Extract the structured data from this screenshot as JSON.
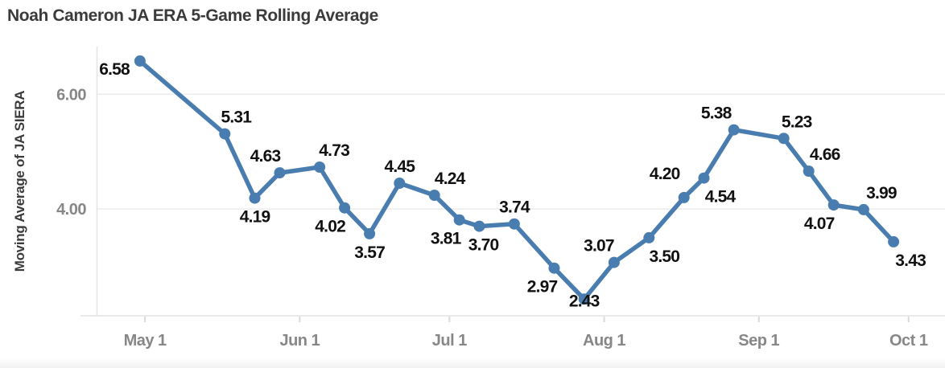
{
  "chart_data": {
    "type": "line",
    "title": "Noah Cameron JA ERA 5-Game Rolling Average",
    "ylabel": "Moving Average of JA SIERA",
    "xlabel": "",
    "legend": false,
    "grid": true,
    "line_color": "#4a7daf",
    "marker_color": "#4a7daf",
    "data_label_color": "#111111",
    "axis_text_color": "#878787",
    "axis_title_color": "#3b3b3b",
    "grid_color": "#ececec",
    "axis_line_color": "#e3e3e3",
    "tick_color": "#d9d9d9",
    "x_unit": "days_since_May_1",
    "xlim_days": [
      -9.7,
      160.3
    ],
    "ylim": [
      2.14,
      6.83
    ],
    "y_ticks": [
      {
        "value": 6.0,
        "label": "6.00"
      },
      {
        "value": 4.0,
        "label": "4.00"
      }
    ],
    "x_ticks": [
      {
        "day": 0,
        "label": "May 1"
      },
      {
        "day": 31,
        "label": "Jun 1"
      },
      {
        "day": 61,
        "label": "Jul 1"
      },
      {
        "day": 92,
        "label": "Aug 1"
      },
      {
        "day": 123,
        "label": "Sep 1"
      },
      {
        "day": 153,
        "label": "Oct 1"
      }
    ],
    "points": [
      {
        "day": -1,
        "value": 6.58,
        "label": "6.58",
        "label_pos": "left"
      },
      {
        "day": 16,
        "value": 5.31,
        "label": "5.31",
        "label_pos": "above",
        "dx": 14
      },
      {
        "day": 22,
        "value": 4.19,
        "label": "4.19",
        "label_pos": "below"
      },
      {
        "day": 27,
        "value": 4.63,
        "label": "4.63",
        "label_pos": "above",
        "dx": -18
      },
      {
        "day": 35,
        "value": 4.73,
        "label": "4.73",
        "label_pos": "above",
        "dx": 18
      },
      {
        "day": 40,
        "value": 4.02,
        "label": "4.02",
        "label_pos": "below",
        "dx": -18
      },
      {
        "day": 45,
        "value": 3.57,
        "label": "3.57",
        "label_pos": "below"
      },
      {
        "day": 51,
        "value": 4.45,
        "label": "4.45",
        "label_pos": "above"
      },
      {
        "day": 58,
        "value": 4.24,
        "label": "4.24",
        "label_pos": "above",
        "dx": 19
      },
      {
        "day": 63,
        "value": 3.81,
        "label": "3.81",
        "label_pos": "below",
        "dx": -17
      },
      {
        "day": 67,
        "value": 3.7,
        "label": "3.70",
        "label_pos": "below",
        "dx": 5
      },
      {
        "day": 74,
        "value": 3.74,
        "label": "3.74",
        "label_pos": "above"
      },
      {
        "day": 82,
        "value": 2.97,
        "label": "2.97",
        "label_pos": "below",
        "dx": -15
      },
      {
        "day": 88,
        "value": 2.43,
        "label": "2.43",
        "label_pos": "below",
        "dy": -21
      },
      {
        "day": 94,
        "value": 3.07,
        "label": "3.07",
        "label_pos": "above",
        "dx": -19
      },
      {
        "day": 101,
        "value": 3.5,
        "label": "3.50",
        "label_pos": "below",
        "dx": 19
      },
      {
        "day": 108,
        "value": 4.2,
        "label": "4.20",
        "label_pos": "above",
        "dx": -24,
        "dy": -9
      },
      {
        "day": 112,
        "value": 4.54,
        "label": "4.54",
        "label_pos": "below",
        "dx": 20
      },
      {
        "day": 118,
        "value": 5.38,
        "label": "5.38",
        "label_pos": "above",
        "dx": -22
      },
      {
        "day": 128,
        "value": 5.23,
        "label": "5.23",
        "label_pos": "above",
        "dx": 16
      },
      {
        "day": 133,
        "value": 4.66,
        "label": "4.66",
        "label_pos": "above",
        "dx": 20
      },
      {
        "day": 138,
        "value": 4.07,
        "label": "4.07",
        "label_pos": "below",
        "dx": -18
      },
      {
        "day": 144,
        "value": 3.99,
        "label": "3.99",
        "label_pos": "above",
        "dx": 22
      },
      {
        "day": 150,
        "value": 3.43,
        "label": "3.43",
        "label_pos": "below",
        "dx": 21
      }
    ]
  }
}
